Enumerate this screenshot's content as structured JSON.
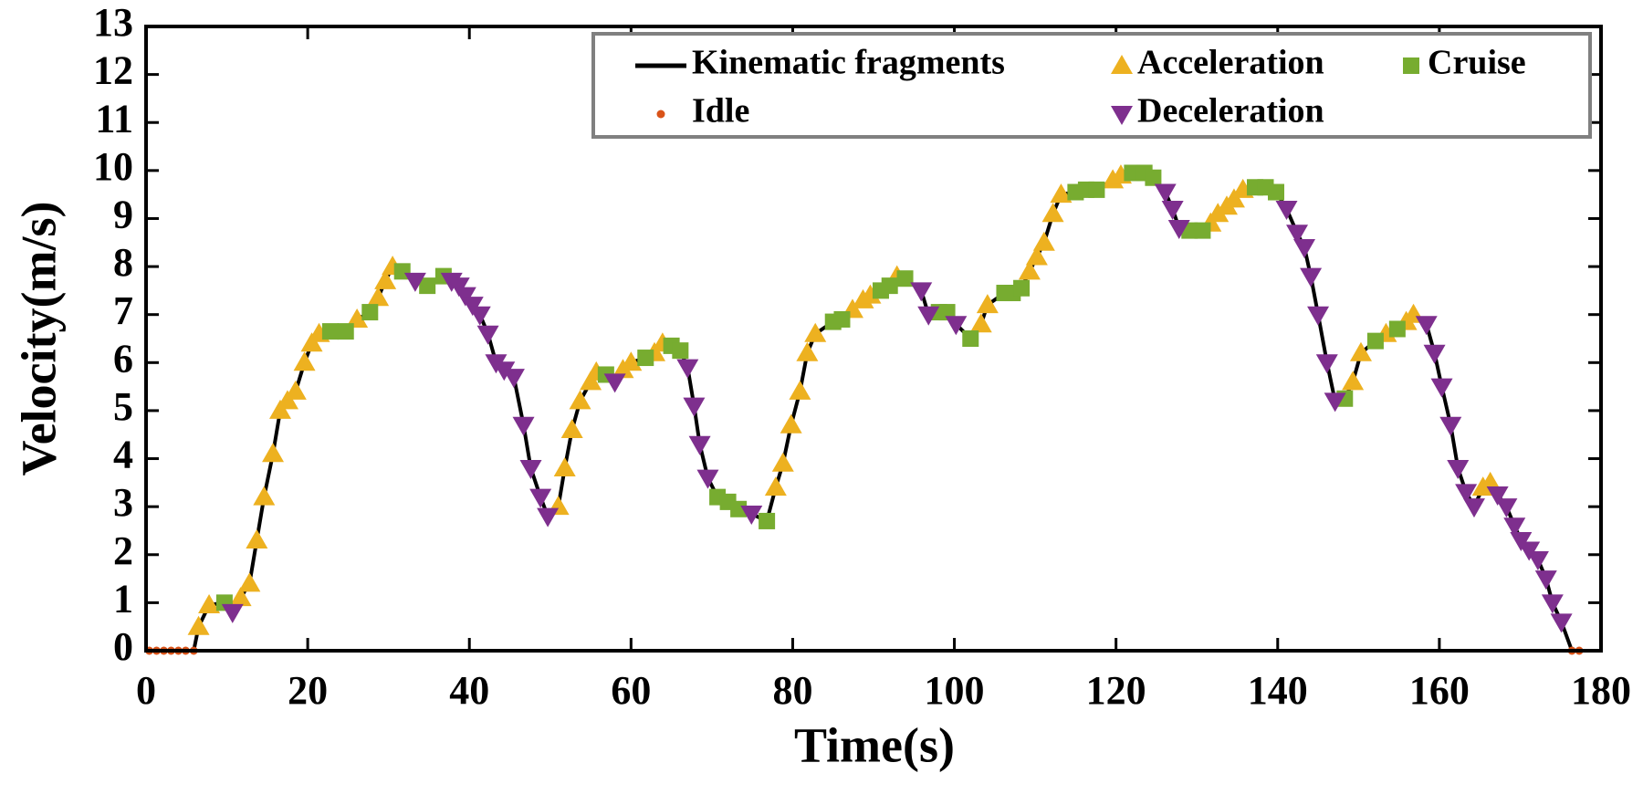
{
  "chart_data": {
    "type": "line",
    "xlabel": "Time(s)",
    "ylabel": "Velocity(m/s)",
    "xlim": [
      0,
      180
    ],
    "ylim": [
      0,
      13
    ],
    "xticks": [
      0,
      20,
      40,
      60,
      80,
      100,
      120,
      140,
      160,
      180
    ],
    "yticks": [
      0,
      1,
      2,
      3,
      4,
      5,
      6,
      7,
      8,
      9,
      10,
      11,
      12,
      13
    ],
    "legend": "upper right",
    "series": [
      {
        "name": "Kinematic fragments",
        "color": "#000000",
        "marker": "line",
        "x": [
          0.4,
          1.3,
          2.2,
          3.1,
          4,
          4.9,
          5.9,
          6.5,
          7.8,
          9.7,
          10.7,
          11.7,
          12.8,
          13.7,
          14.6,
          15.7,
          16.6,
          17.5,
          18.5,
          19.6,
          20.5,
          21.4,
          22.8,
          24.7,
          26.1,
          27.7,
          28.7,
          29.6,
          30.5,
          31.7,
          33.3,
          34.8,
          36.8,
          37.8,
          38.7,
          39.5,
          40.4,
          41.3,
          42.3,
          43.3,
          44.3,
          45.5,
          46.7,
          47.6,
          48.8,
          49.7,
          51,
          51.8,
          52.7,
          53.7,
          55,
          55.7,
          56.9,
          58,
          59,
          60,
          61.8,
          62.9,
          63.9,
          65,
          66.1,
          67,
          67.8,
          68.5,
          69.5,
          70.7,
          72,
          73.3,
          74.9,
          76.8,
          77.9,
          78.8,
          79.8,
          80.9,
          81.8,
          82.8,
          85,
          86.1,
          87.4,
          88.7,
          89.6,
          90.9,
          92,
          92.9,
          93.9,
          95.9,
          96.8,
          98.1,
          99.1,
          100.2,
          102,
          103.3,
          104.1,
          106.2,
          107.2,
          108.3,
          109.3,
          110.2,
          111.1,
          112.2,
          113.2,
          115,
          116.3,
          117.6,
          119.6,
          120.6,
          122,
          123.5,
          124.6,
          126.1,
          127,
          127.8,
          129.1,
          130.7,
          131.7,
          132.6,
          133.7,
          134.6,
          135.7,
          137.2,
          138.5,
          139.8,
          141.1,
          142.4,
          143.3,
          144.1,
          145,
          146.1,
          147.1,
          148.3,
          149.3,
          150.3,
          152.1,
          153.4,
          154.8,
          155.9,
          156.8,
          158.4,
          159.4,
          160.3,
          161.4,
          162.3,
          163.3,
          164.3,
          165.4,
          166.3,
          167.2,
          168.3,
          169.3,
          170.1,
          171.1,
          172.2,
          173.2,
          174,
          175.1,
          176.4,
          177.3
        ],
        "values": [
          0,
          0,
          0,
          0,
          0,
          0,
          0,
          0.5,
          0.95,
          1,
          0.8,
          1.1,
          1.4,
          2.3,
          3.2,
          4.1,
          5,
          5.2,
          5.4,
          6,
          6.4,
          6.6,
          6.65,
          6.65,
          6.9,
          7.05,
          7.35,
          7.7,
          8,
          7.9,
          7.7,
          7.6,
          7.8,
          7.7,
          7.6,
          7.4,
          7.2,
          7,
          6.6,
          6,
          5.85,
          5.7,
          4.7,
          3.8,
          3.2,
          2.8,
          3,
          3.8,
          4.6,
          5.2,
          5.6,
          5.8,
          5.75,
          5.6,
          5.85,
          6,
          6.1,
          6.2,
          6.4,
          6.35,
          6.25,
          5.9,
          5.1,
          4.3,
          3.6,
          3.2,
          3.1,
          2.95,
          2.85,
          2.7,
          3.4,
          3.9,
          4.7,
          5.4,
          6.2,
          6.6,
          6.85,
          6.9,
          7.1,
          7.3,
          7.4,
          7.5,
          7.6,
          7.8,
          7.75,
          7.5,
          7,
          7.05,
          7.05,
          6.8,
          6.5,
          6.8,
          7.2,
          7.45,
          7.45,
          7.55,
          7.9,
          8.2,
          8.5,
          9.1,
          9.5,
          9.55,
          9.6,
          9.6,
          9.8,
          9.9,
          9.95,
          9.95,
          9.85,
          9.55,
          9.2,
          8.8,
          8.75,
          8.75,
          8.9,
          9.1,
          9.25,
          9.4,
          9.6,
          9.65,
          9.65,
          9.55,
          9.2,
          8.7,
          8.4,
          7.8,
          7,
          6,
          5.2,
          5.25,
          5.6,
          6.2,
          6.45,
          6.6,
          6.7,
          6.85,
          7,
          6.8,
          6.2,
          5.5,
          4.7,
          3.8,
          3.3,
          3,
          3.4,
          3.5,
          3.25,
          3,
          2.6,
          2.3,
          2.1,
          1.9,
          1.5,
          1,
          0.6,
          0,
          0
        ]
      },
      {
        "name": "Acceleration",
        "color": "#EDB120",
        "marker": "triangle-up",
        "x": [
          6.5,
          7.8,
          11.7,
          12.8,
          13.7,
          14.6,
          15.7,
          16.6,
          17.5,
          18.5,
          19.6,
          20.5,
          21.4,
          26.1,
          28.7,
          29.6,
          30.5,
          51,
          51.8,
          52.7,
          53.7,
          55,
          55.7,
          59,
          60,
          62.9,
          63.9,
          77.9,
          78.8,
          79.8,
          80.9,
          81.8,
          82.8,
          87.4,
          88.7,
          89.6,
          92.9,
          103.3,
          104.1,
          109.3,
          110.2,
          111.1,
          112.2,
          113.2,
          119.6,
          120.6,
          131.7,
          132.6,
          133.7,
          134.6,
          135.7,
          149.3,
          150.3,
          153.4,
          155.9,
          156.8,
          165.4,
          166.3
        ],
        "values": [
          0.5,
          0.95,
          1.1,
          1.4,
          2.3,
          3.2,
          4.1,
          5,
          5.2,
          5.4,
          6,
          6.4,
          6.6,
          6.9,
          7.35,
          7.7,
          8,
          3,
          3.8,
          4.6,
          5.2,
          5.6,
          5.8,
          5.85,
          6,
          6.2,
          6.4,
          3.4,
          3.9,
          4.7,
          5.4,
          6.2,
          6.6,
          7.1,
          7.3,
          7.4,
          7.8,
          6.8,
          7.2,
          7.9,
          8.2,
          8.5,
          9.1,
          9.5,
          9.8,
          9.9,
          8.9,
          9.1,
          9.25,
          9.4,
          9.6,
          5.6,
          6.2,
          6.6,
          6.85,
          7,
          3.4,
          3.5
        ]
      },
      {
        "name": "Cruise",
        "color": "#77AC30",
        "marker": "square",
        "x": [
          9.7,
          22.8,
          24.7,
          27.7,
          31.7,
          34.8,
          36.8,
          56.9,
          61.8,
          65,
          66.1,
          70.7,
          72,
          73.3,
          76.8,
          85,
          86.1,
          90.9,
          92,
          93.9,
          98.1,
          99.1,
          102,
          106.2,
          107.2,
          108.3,
          115,
          116.3,
          117.6,
          122,
          123.5,
          124.6,
          129.1,
          130.7,
          137.2,
          138.5,
          139.8,
          148.3,
          152.1,
          154.8
        ],
        "values": [
          1,
          6.65,
          6.65,
          7.05,
          7.9,
          7.6,
          7.8,
          5.75,
          6.1,
          6.35,
          6.25,
          3.2,
          3.1,
          2.95,
          2.7,
          6.85,
          6.9,
          7.5,
          7.6,
          7.75,
          7.05,
          7.05,
          6.5,
          7.45,
          7.45,
          7.55,
          9.55,
          9.6,
          9.6,
          9.95,
          9.95,
          9.85,
          8.75,
          8.75,
          9.65,
          9.65,
          9.55,
          5.25,
          6.45,
          6.7
        ]
      },
      {
        "name": "Idle",
        "color": "#D95319",
        "marker": "dot",
        "x": [
          0.4,
          1.3,
          2.2,
          3.1,
          4,
          4.9,
          5.9,
          176.4,
          177.3
        ],
        "values": [
          0,
          0,
          0,
          0,
          0,
          0,
          0,
          0,
          0
        ]
      },
      {
        "name": "Deceleration",
        "color": "#7E2F8E",
        "marker": "triangle-down",
        "x": [
          10.7,
          33.3,
          37.8,
          38.7,
          39.5,
          40.4,
          41.3,
          42.3,
          43.3,
          44.3,
          45.5,
          46.7,
          47.6,
          48.8,
          49.7,
          58,
          67,
          67.8,
          68.5,
          69.5,
          74.9,
          95.9,
          96.8,
          100.2,
          126.1,
          127,
          127.8,
          141.1,
          142.4,
          143.3,
          144.1,
          145,
          146.1,
          147.1,
          158.4,
          159.4,
          160.3,
          161.4,
          162.3,
          163.3,
          164.3,
          167.2,
          168.3,
          169.3,
          170.1,
          171.1,
          172.2,
          173.2,
          174,
          175.1
        ],
        "values": [
          0.8,
          7.7,
          7.7,
          7.6,
          7.4,
          7.2,
          7,
          6.6,
          6,
          5.85,
          5.7,
          4.7,
          3.8,
          3.2,
          2.8,
          5.6,
          5.9,
          5.1,
          4.3,
          3.6,
          2.85,
          7.5,
          7,
          6.8,
          9.55,
          9.2,
          8.8,
          9.2,
          8.7,
          8.4,
          7.8,
          7,
          6,
          5.2,
          6.8,
          6.2,
          5.5,
          4.7,
          3.8,
          3.3,
          3,
          3.25,
          3,
          2.6,
          2.3,
          2.1,
          1.9,
          1.5,
          1,
          0.6
        ]
      }
    ]
  }
}
